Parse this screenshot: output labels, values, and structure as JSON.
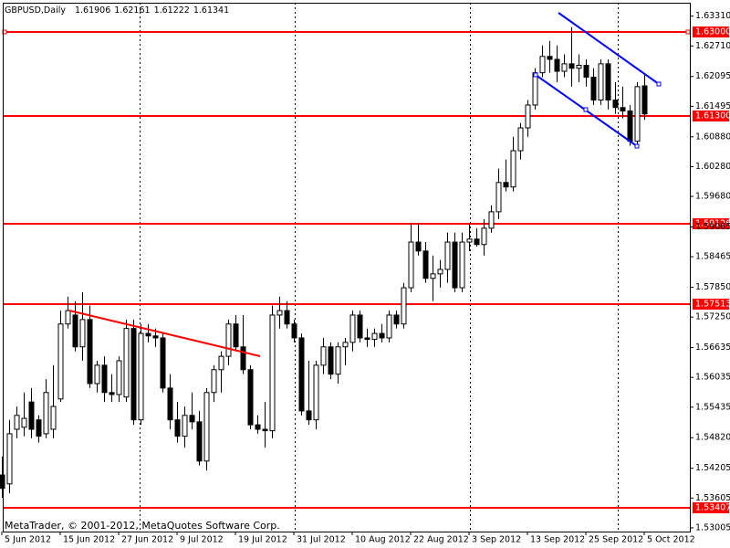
{
  "chart_data": {
    "type": "candlestick",
    "title": "GBPUSD,Daily",
    "footer": "MetaTrader, © 2001-2012, MetaQuotes Software Corp.",
    "categories": [
      "5 Jun 2012",
      null,
      null,
      null,
      null,
      null,
      null,
      null,
      "15 Jun 2012",
      null,
      null,
      null,
      null,
      null,
      null,
      null,
      "27 Jun 2012",
      null,
      null,
      null,
      null,
      null,
      null,
      null,
      "9 Jul 2012",
      null,
      null,
      null,
      null,
      null,
      null,
      null,
      "19 Jul 2012",
      null,
      null,
      null,
      null,
      null,
      null,
      null,
      "31 Jul 2012",
      null,
      null,
      null,
      null,
      null,
      null,
      null,
      "10 Aug 2012",
      null,
      null,
      null,
      null,
      null,
      null,
      null,
      "22 Aug 2012",
      null,
      null,
      null,
      null,
      null,
      null,
      null,
      "3 Sep 2012",
      null,
      null,
      null,
      null,
      null,
      null,
      null,
      "13 Sep 2012",
      null,
      null,
      null,
      null,
      null,
      null,
      null,
      "25 Sep 2012",
      null,
      null,
      null,
      null,
      null,
      null,
      null,
      "5 Oct 2012"
    ],
    "open": [
      1.5407,
      1.5389,
      1.5499,
      1.5503,
      1.5554,
      1.5518,
      1.549,
      1.5499,
      1.556,
      1.5711,
      1.5729,
      1.5665,
      1.572,
      1.5591,
      1.5628,
      1.5573,
      1.5569,
      1.5564,
      1.5702,
      1.5518,
      1.5692,
      1.5687,
      1.5683,
      1.5582,
      1.5518,
      1.5485,
      1.5527,
      1.5514,
      1.5435,
      1.5573,
      1.5619,
      1.5646,
      1.5711,
      1.5665,
      1.5619,
      1.5508,
      1.5499,
      1.5496,
      1.5729,
      1.5738,
      1.5711,
      1.5683,
      1.5536,
      1.5518,
      1.5628,
      1.5665,
      1.561,
      1.5665,
      1.5674,
      1.5729,
      1.5683,
      1.568,
      1.5692,
      1.5683,
      1.5729,
      1.5711,
      1.5784,
      1.5876,
      1.5858,
      1.5803,
      1.5812,
      1.5821,
      1.5876,
      1.5784,
      1.5876,
      1.5882,
      1.5871,
      1.5904,
      1.5937,
      1.5996,
      1.5987,
      1.606,
      1.6106,
      1.6152,
      1.6217,
      1.625,
      1.6244,
      1.622,
      1.6235,
      1.6226,
      1.6232,
      1.6208,
      1.6162,
      1.6235,
      1.6162,
      1.6147,
      1.614,
      1.6079,
      1.61906
    ],
    "high": [
      1.5444,
      1.5518,
      1.5545,
      1.5573,
      1.5582,
      1.5527,
      1.56,
      1.5628,
      1.5738,
      1.5766,
      1.5757,
      1.5775,
      1.5748,
      1.5637,
      1.5646,
      1.561,
      1.5646,
      1.572,
      1.572,
      1.5711,
      1.5711,
      1.5702,
      1.5692,
      1.561,
      1.5554,
      1.5545,
      1.5573,
      1.5536,
      1.5582,
      1.5628,
      1.5656,
      1.572,
      1.5729,
      1.5729,
      1.5628,
      1.5527,
      1.5554,
      1.5748,
      1.5766,
      1.5757,
      1.572,
      1.5692,
      1.5637,
      1.5637,
      1.5683,
      1.5674,
      1.5674,
      1.5683,
      1.5738,
      1.5738,
      1.5702,
      1.5702,
      1.5711,
      1.5738,
      1.5738,
      1.5794,
      1.5913,
      1.5913,
      1.5876,
      1.5849,
      1.584,
      1.5895,
      1.5895,
      1.5895,
      1.5913,
      1.5904,
      1.5922,
      1.595,
      1.6024,
      1.6042,
      1.6088,
      1.6116,
      1.6162,
      1.6226,
      1.6272,
      1.6281,
      1.6272,
      1.6254,
      1.6309,
      1.6254,
      1.6244,
      1.6226,
      1.6244,
      1.6244,
      1.6198,
      1.6189,
      1.6152,
      1.6198,
      1.62161
    ],
    "low": [
      1.5361,
      1.537,
      1.5481,
      1.5485,
      1.5481,
      1.5472,
      1.5481,
      1.5481,
      1.5554,
      1.5702,
      1.5656,
      1.5637,
      1.5582,
      1.5573,
      1.5554,
      1.5554,
      1.5554,
      1.5554,
      1.5508,
      1.5508,
      1.5674,
      1.5665,
      1.5573,
      1.5499,
      1.5472,
      1.5462,
      1.5499,
      1.5426,
      1.5416,
      1.5554,
      1.5573,
      1.5628,
      1.5656,
      1.561,
      1.5499,
      1.549,
      1.5462,
      1.5481,
      1.5702,
      1.5702,
      1.5674,
      1.5527,
      1.5508,
      1.5499,
      1.561,
      1.56,
      1.5591,
      1.5628,
      1.5656,
      1.5674,
      1.5665,
      1.5665,
      1.5674,
      1.5674,
      1.5702,
      1.5702,
      1.5775,
      1.5849,
      1.5794,
      1.5757,
      1.5784,
      1.5794,
      1.5775,
      1.5775,
      1.5858,
      1.5867,
      1.5849,
      1.5895,
      1.5922,
      1.5978,
      1.5978,
      1.6042,
      1.6088,
      1.6143,
      1.6208,
      1.6217,
      1.6198,
      1.6208,
      1.6189,
      1.6198,
      1.6189,
      1.6152,
      1.6152,
      1.6143,
      1.6134,
      1.6125,
      1.607,
      1.607,
      1.61222
    ],
    "close": [
      1.538,
      1.549,
      1.5527,
      1.5521,
      1.5499,
      1.5485,
      1.5573,
      1.5545,
      1.5711,
      1.5738,
      1.5665,
      1.572,
      1.5591,
      1.5628,
      1.5573,
      1.5569,
      1.5637,
      1.5702,
      1.5518,
      1.5692,
      1.5687,
      1.5683,
      1.5582,
      1.5518,
      1.5485,
      1.5527,
      1.5514,
      1.5435,
      1.5573,
      1.5619,
      1.5646,
      1.5711,
      1.5665,
      1.5619,
      1.5508,
      1.5499,
      1.5496,
      1.5729,
      1.5738,
      1.5711,
      1.5683,
      1.5536,
      1.5518,
      1.5628,
      1.5665,
      1.561,
      1.5665,
      1.5674,
      1.5729,
      1.5683,
      1.568,
      1.5692,
      1.5683,
      1.5729,
      1.5711,
      1.5784,
      1.5876,
      1.5858,
      1.5803,
      1.5812,
      1.5821,
      1.5876,
      1.5784,
      1.5876,
      1.5882,
      1.5871,
      1.5904,
      1.5937,
      1.5996,
      1.5987,
      1.606,
      1.6106,
      1.6152,
      1.6217,
      1.625,
      1.6244,
      1.622,
      1.6235,
      1.6226,
      1.6232,
      1.6208,
      1.6162,
      1.6235,
      1.6162,
      1.6147,
      1.614,
      1.6079,
      1.6189,
      1.61341
    ],
    "up_color": "#ffffff",
    "down_color": "#000000",
    "ylim": [
      1.5293,
      1.6358
    ],
    "yticks": [
      {
        "value": 1.6331,
        "label": "1.63310"
      },
      {
        "value": 1.6271,
        "label": "1.62710"
      },
      1.62095,
      1.61495,
      {
        "value": 1.6088,
        "label": "1.60880"
      },
      {
        "value": 1.6028,
        "label": "1.60280"
      },
      {
        "value": 1.5968,
        "label": "1.59680"
      },
      1.59065,
      1.58465,
      {
        "value": 1.5785,
        "label": "1.57850"
      },
      {
        "value": 1.5725,
        "label": "1.57250"
      },
      1.56635,
      1.56035,
      1.55435,
      {
        "value": 1.5482,
        "label": "1.54820"
      },
      1.54205,
      1.53605,
      1.53005
    ],
    "levels": [
      {
        "value": 1.63,
        "label": "1.63000"
      },
      {
        "value": 1.613,
        "label": "1.61300"
      },
      1.59126,
      1.57513,
      1.53407
    ],
    "level_color": "#ff0000"
  }
}
